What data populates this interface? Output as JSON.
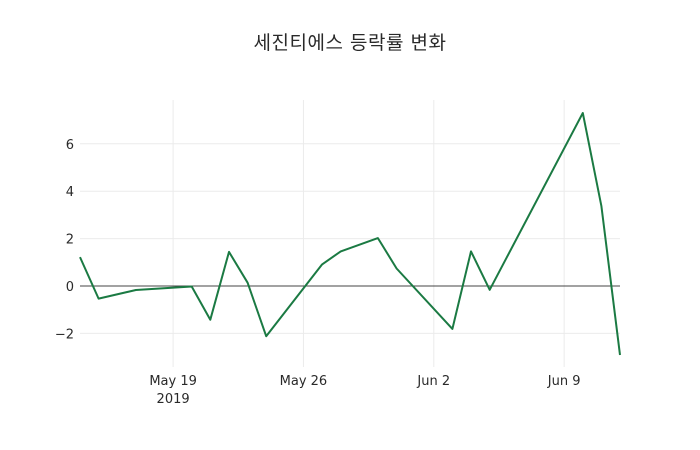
{
  "title": "세진티에스 등락률 변화",
  "colors": {
    "line": "#1b7a43",
    "grid": "#ebebeb",
    "zeroline": "#444444",
    "text": "#2a2a2a",
    "background": "#ffffff"
  },
  "chart_data": {
    "type": "line",
    "title": "세진티에스 등락률 변화",
    "xlabel": "",
    "ylabel": "",
    "x": [
      "2019-05-14",
      "2019-05-15",
      "2019-05-17",
      "2019-05-20",
      "2019-05-21",
      "2019-05-22",
      "2019-05-23",
      "2019-05-24",
      "2019-05-27",
      "2019-05-28",
      "2019-05-30",
      "2019-05-31",
      "2019-06-03",
      "2019-06-04",
      "2019-06-05",
      "2019-06-10",
      "2019-06-11",
      "2019-06-12"
    ],
    "series": [
      {
        "name": "등락률",
        "values": [
          1.22,
          -0.53,
          -0.17,
          -0.02,
          -1.42,
          1.44,
          0.14,
          -2.12,
          0.91,
          1.46,
          2.02,
          0.74,
          -1.81,
          1.46,
          -0.16,
          7.3,
          3.37,
          -2.91
        ]
      }
    ],
    "xlim": [
      "2019-05-14",
      "2019-06-12"
    ],
    "ylim": [
      -3.4,
      7.9
    ],
    "x_ticks": [
      {
        "date": "2019-05-19",
        "label": "May 19",
        "sublabel": "2019"
      },
      {
        "date": "2019-05-26",
        "label": "May 26",
        "sublabel": ""
      },
      {
        "date": "2019-06-02",
        "label": "Jun 2",
        "sublabel": ""
      },
      {
        "date": "2019-06-09",
        "label": "Jun 9",
        "sublabel": ""
      }
    ],
    "y_ticks": [
      {
        "value": -2,
        "label": "−2"
      },
      {
        "value": 0,
        "label": "0"
      },
      {
        "value": 2,
        "label": "2"
      },
      {
        "value": 4,
        "label": "4"
      },
      {
        "value": 6,
        "label": "6"
      }
    ],
    "grid": true,
    "zeroline": true,
    "legend": false
  }
}
